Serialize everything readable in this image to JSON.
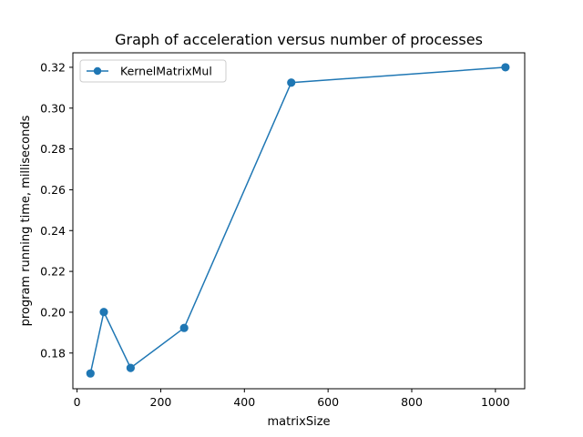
{
  "chart_data": {
    "type": "line",
    "title": "Graph of acceleration versus number of processes",
    "xlabel": "matrixSize",
    "ylabel": "program running time, milliseconds",
    "xlim": [
      -10,
      1070
    ],
    "ylim": [
      0.1625,
      0.3271
    ],
    "xticks": [
      0,
      200,
      400,
      600,
      800,
      1000
    ],
    "yticks": [
      0.18,
      0.2,
      0.22,
      0.24,
      0.26,
      0.28,
      0.3,
      0.32
    ],
    "xtick_labels": [
      "0",
      "200",
      "400",
      "600",
      "800",
      "1000"
    ],
    "ytick_labels": [
      "0.18",
      "0.20",
      "0.22",
      "0.24",
      "0.26",
      "0.28",
      "0.30",
      "0.32"
    ],
    "grid": false,
    "legend_position": "top-left",
    "series": [
      {
        "name": "KernelMatrixMul",
        "color": "#1f77b4",
        "marker": "circle",
        "x": [
          32,
          64,
          128,
          256,
          512,
          1024
        ],
        "y": [
          0.17,
          0.2001,
          0.1727,
          0.1923,
          0.3125,
          0.32
        ]
      }
    ]
  }
}
